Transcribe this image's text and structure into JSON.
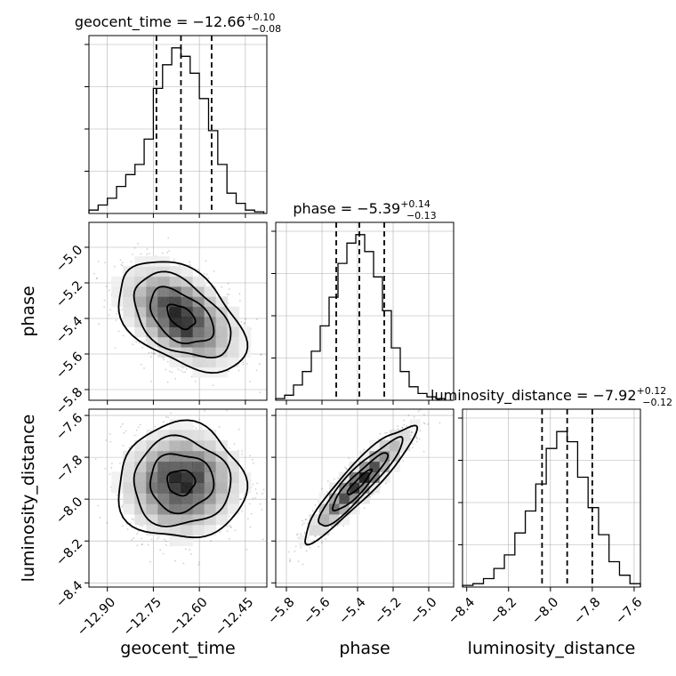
{
  "chart_data": {
    "type": "corner",
    "parameters": [
      "geocent_time",
      "phase",
      "luminosity_distance"
    ],
    "axis_labels": {
      "geocent_time": "geocent_time",
      "phase": "phase",
      "luminosity_distance": "luminosity_distance"
    },
    "ranges": {
      "geocent_time": [
        -12.96,
        -12.38
      ],
      "phase": [
        -5.86,
        -4.86
      ],
      "luminosity_distance": [
        -8.42,
        -7.57
      ]
    },
    "ticks": {
      "geocent_time": [
        "−12.90",
        "−12.75",
        "−12.60",
        "−12.45"
      ],
      "phase": [
        "−5.8",
        "−5.6",
        "−5.4",
        "−5.2",
        "−5.0"
      ],
      "luminosity_distance": [
        "−8.4",
        "−8.2",
        "−8.0",
        "−7.8",
        "−7.6"
      ]
    },
    "tick_values": {
      "geocent_time": [
        -12.9,
        -12.75,
        -12.6,
        -12.45
      ],
      "phase": [
        -5.8,
        -5.6,
        -5.4,
        -5.2,
        -5.0
      ],
      "luminosity_distance": [
        -8.4,
        -8.2,
        -8.0,
        -7.8,
        -7.6
      ]
    },
    "titles": {
      "geocent_time": {
        "prefix": "geocent_time = −12.66",
        "plus": "+0.10",
        "minus": "−0.08"
      },
      "phase": {
        "prefix": "phase = −5.39",
        "plus": "+0.14",
        "minus": "−0.13"
      },
      "luminosity_distance": {
        "prefix": "luminosity_distance = −7.92",
        "plus": "+0.12",
        "minus": "−0.12"
      }
    },
    "quantiles": {
      "geocent_time": [
        -12.74,
        -12.66,
        -12.56
      ],
      "phase": [
        -5.52,
        -5.39,
        -5.25
      ],
      "luminosity_distance": [
        -8.04,
        -7.92,
        -7.8
      ]
    },
    "histograms": {
      "geocent_time": {
        "edges": [
          -12.96,
          -12.93,
          -12.9,
          -12.87,
          -12.84,
          -12.81,
          -12.78,
          -12.75,
          -12.72,
          -12.69,
          -12.66,
          -12.63,
          -12.6,
          -12.57,
          -12.54,
          -12.51,
          -12.48,
          -12.45,
          -12.42,
          -12.39
        ],
        "counts": [
          0.02,
          0.05,
          0.09,
          0.16,
          0.23,
          0.29,
          0.44,
          0.74,
          0.88,
          0.98,
          0.93,
          0.83,
          0.68,
          0.49,
          0.29,
          0.12,
          0.06,
          0.02,
          0.01
        ]
      },
      "phase": {
        "edges": [
          -5.86,
          -5.81,
          -5.76,
          -5.71,
          -5.66,
          -5.61,
          -5.56,
          -5.51,
          -5.46,
          -5.41,
          -5.36,
          -5.31,
          -5.26,
          -5.21,
          -5.16,
          -5.11,
          -5.06,
          -5.01,
          -4.96,
          -4.91
        ],
        "counts": [
          0.01,
          0.03,
          0.09,
          0.17,
          0.29,
          0.44,
          0.61,
          0.81,
          0.93,
          0.98,
          0.88,
          0.73,
          0.53,
          0.31,
          0.17,
          0.08,
          0.04,
          0.02,
          0.01
        ]
      },
      "luminosity_distance": {
        "edges": [
          -8.42,
          -8.37,
          -8.32,
          -8.27,
          -8.22,
          -8.17,
          -8.12,
          -8.07,
          -8.02,
          -7.97,
          -7.92,
          -7.87,
          -7.82,
          -7.77,
          -7.72,
          -7.67,
          -7.62,
          -7.57
        ],
        "counts": [
          0.01,
          0.02,
          0.05,
          0.11,
          0.19,
          0.32,
          0.45,
          0.61,
          0.82,
          0.92,
          0.86,
          0.65,
          0.47,
          0.31,
          0.15,
          0.07,
          0.02
        ]
      }
    },
    "correlations": {
      "phase_vs_geocent_time": -0.45,
      "luminosity_distance_vs_geocent_time": 0.0,
      "luminosity_distance_vs_phase": 0.92
    },
    "grid": true
  }
}
